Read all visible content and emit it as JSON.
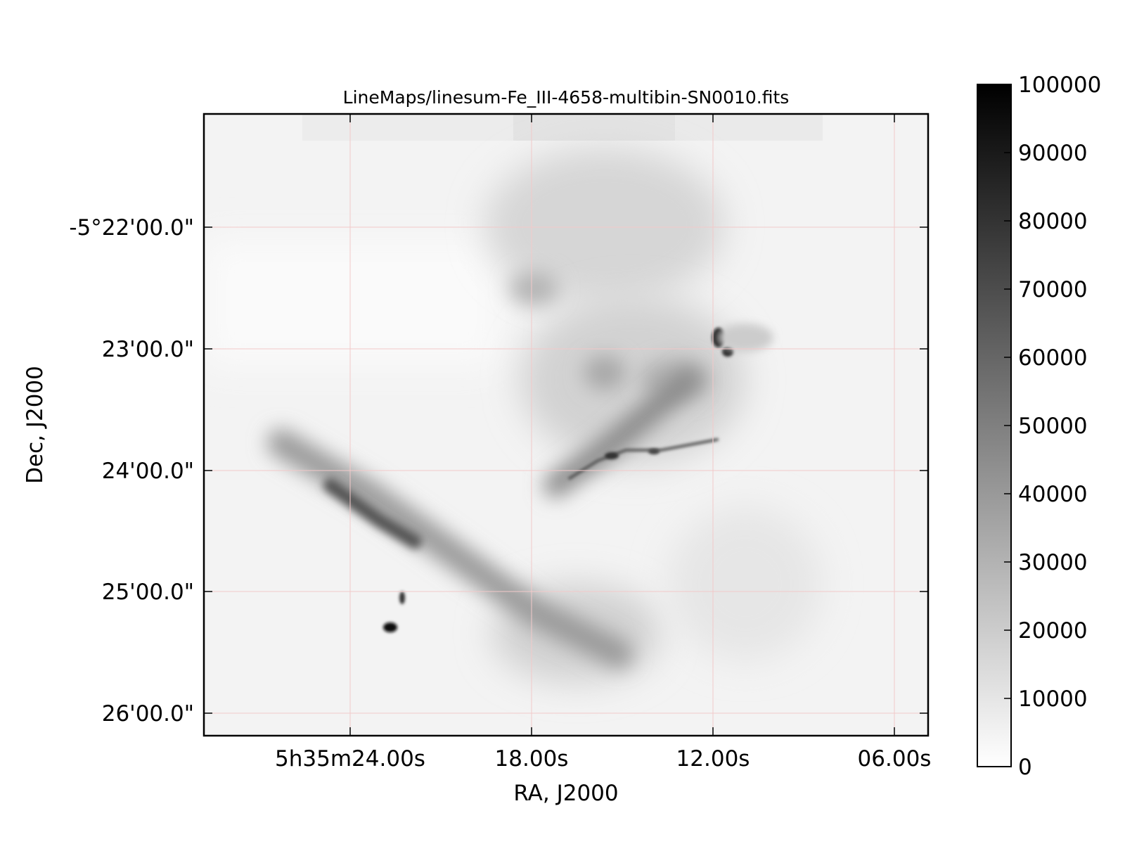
{
  "chart_data": {
    "type": "heatmap",
    "title": "LineMaps/linesum-Fe_III-4658-multibin-SN0010.fits",
    "xlabel": "RA, J2000",
    "ylabel": "Dec, J2000",
    "x_ticks": [
      "5h35m24.00s",
      "18.00s",
      "12.00s",
      "06.00s"
    ],
    "y_ticks": [
      "-5°22'00.0\"",
      "23'00.0\"",
      "24'00.0\"",
      "25'00.0\"",
      "26'00.0\""
    ],
    "colorbar": {
      "ticks": [
        "0",
        "10000",
        "20000",
        "30000",
        "40000",
        "50000",
        "60000",
        "70000",
        "80000",
        "90000",
        "100000"
      ],
      "range": [
        0,
        100000
      ],
      "colormap": "gray_r"
    },
    "grid": true,
    "grid_color": "#f2c9c9",
    "features": [
      {
        "description": "diffuse nebular emission",
        "level": 10000
      },
      {
        "description": "bright knots",
        "level": 100000
      }
    ]
  }
}
